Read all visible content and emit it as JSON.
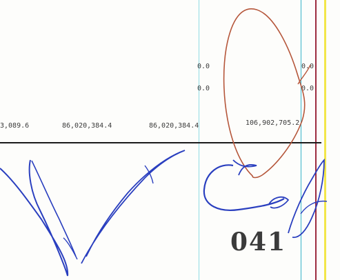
{
  "ledger": {
    "row_top": {
      "col_right_a": "0.0",
      "col_right_b": "0.0"
    },
    "row_mid": {
      "col_right_a": "0.0",
      "col_right_b": "0.0"
    },
    "totals": {
      "col_1": "3,089.6",
      "col_2": "86,020,384.4",
      "col_3": "86,020,384.4",
      "col_4": "106,902,705.2"
    }
  },
  "page_number": "041",
  "colors": {
    "rule": "#1a1a1a",
    "cyan_line": "#7fd6e0",
    "teal_line": "#37b3c9",
    "red_line": "#9c2b3f",
    "yellow_line": "#f2e64a",
    "blue_ink": "#2a3fbf",
    "brown_ink": "#b5563a"
  }
}
